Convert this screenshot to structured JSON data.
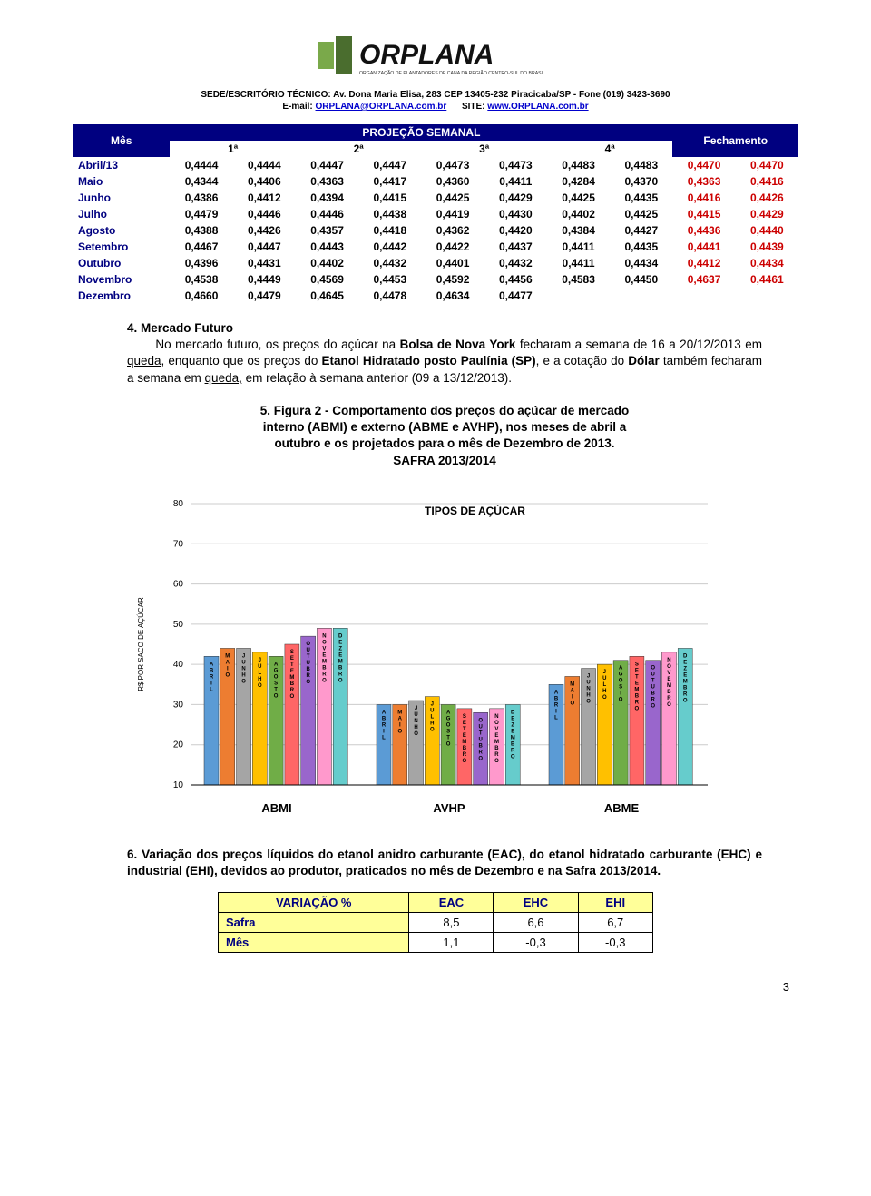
{
  "header": {
    "sede": "SEDE/ESCRITÓRIO TÉCNICO: Av. Dona Maria Elisa, 283 CEP 13405-232 Piracicaba/SP - Fone (019) 3423-3690",
    "email_label": "E-mail: ",
    "email": "ORPLANA@ORPLANA.com.br",
    "site_label": "SITE: ",
    "site": "www.ORPLANA.com.br",
    "logo_text": "ORPLANA",
    "logo_sub": "ORGANIZAÇÃO DE PLANTADORES DE CANA DA REGIÃO CENTRO-SUL DO BRASIL"
  },
  "proj_table": {
    "caption_mes": "Mês",
    "caption_proj": "PROJEÇÃO SEMANAL",
    "caption_fech": "Fechamento",
    "weeks": [
      "1ª",
      "2ª",
      "3ª",
      "4ª"
    ],
    "rows": [
      {
        "m": "Abril/13",
        "v": [
          "0,4444",
          "0,4444",
          "0,4447",
          "0,4447",
          "0,4473",
          "0,4473",
          "0,4483",
          "0,4483"
        ],
        "f": [
          "0,4470",
          "0,4470"
        ]
      },
      {
        "m": "Maio",
        "v": [
          "0,4344",
          "0,4406",
          "0,4363",
          "0,4417",
          "0,4360",
          "0,4411",
          "0,4284",
          "0,4370"
        ],
        "f": [
          "0,4363",
          "0,4416"
        ]
      },
      {
        "m": "Junho",
        "v": [
          "0,4386",
          "0,4412",
          "0,4394",
          "0,4415",
          "0,4425",
          "0,4429",
          "0,4425",
          "0,4435"
        ],
        "f": [
          "0,4416",
          "0,4426"
        ]
      },
      {
        "m": "Julho",
        "v": [
          "0,4479",
          "0,4446",
          "0,4446",
          "0,4438",
          "0,4419",
          "0,4430",
          "0,4402",
          "0,4425"
        ],
        "f": [
          "0,4415",
          "0,4429"
        ]
      },
      {
        "m": "Agosto",
        "v": [
          "0,4388",
          "0,4426",
          "0,4357",
          "0,4418",
          "0,4362",
          "0,4420",
          "0,4384",
          "0,4427"
        ],
        "f": [
          "0,4436",
          "0,4440"
        ]
      },
      {
        "m": "Setembro",
        "v": [
          "0,4467",
          "0,4447",
          "0,4443",
          "0,4442",
          "0,4422",
          "0,4437",
          "0,4411",
          "0,4435"
        ],
        "f": [
          "0,4441",
          "0,4439"
        ]
      },
      {
        "m": "Outubro",
        "v": [
          "0,4396",
          "0,4431",
          "0,4402",
          "0,4432",
          "0,4401",
          "0,4432",
          "0,4411",
          "0,4434"
        ],
        "f": [
          "0,4412",
          "0,4434"
        ]
      },
      {
        "m": "Novembro",
        "v": [
          "0,4538",
          "0,4449",
          "0,4569",
          "0,4453",
          "0,4592",
          "0,4456",
          "0,4583",
          "0,4450"
        ],
        "f": [
          "0,4637",
          "0,4461"
        ]
      },
      {
        "m": "Dezembro",
        "v": [
          "0,4660",
          "0,4479",
          "0,4645",
          "0,4478",
          "0,4634",
          "0,4477",
          "",
          ""
        ],
        "f": [
          "",
          ""
        ]
      }
    ]
  },
  "sec4": {
    "title": "4. Mercado Futuro",
    "body_pre": "No mercado futuro, os preços do açúcar na ",
    "bolsa": "Bolsa de Nova York",
    "body_mid1": " fecharam a semana de 16 a 20/12/2013 em ",
    "queda1": "queda",
    "body_mid2": ", enquanto que os preços do ",
    "etanol": "Etanol Hidratado posto Paulínia (SP)",
    "body_mid3": ", e a cotação do ",
    "dolar": "Dólar",
    "body_mid4": " também fecharam a semana em ",
    "queda2": "queda,",
    "body_end": " em relação à semana anterior (09 a 13/12/2013)."
  },
  "sec5": {
    "line1": "5. Figura 2 - Comportamento dos preços do açúcar de mercado",
    "line2": "interno (ABMI) e externo (ABME e AVHP), nos meses de abril a",
    "line3": "outubro e os projetados para o mês de Dezembro de 2013.",
    "line4": "SAFRA 2013/2014"
  },
  "chart": {
    "title": "TIPOS DE AÇÚCAR",
    "ylabel": "R$ POR SACO DE AÇÚCAR",
    "yticks": [
      10,
      20,
      30,
      40,
      50,
      60,
      70,
      80
    ],
    "ymin": 10,
    "ymax": 80,
    "groups": [
      "ABMI",
      "AVHP",
      "ABME"
    ],
    "months": [
      "ABRIL",
      "MAIO",
      "JUNHO",
      "JULHO",
      "AGOSTO",
      "SETEMBRO",
      "OUTUBRO",
      "NOVEMBRO",
      "DEZEMBRO"
    ],
    "colors": [
      "#5b9bd5",
      "#ed7d31",
      "#a5a5a5",
      "#ffc000",
      "#70ad47",
      "#ff6666",
      "#9966cc",
      "#ff99cc",
      "#66cccc"
    ],
    "values": {
      "ABMI": [
        42,
        44,
        44,
        43,
        42,
        45,
        47,
        49,
        49
      ],
      "AVHP": [
        30,
        30,
        31,
        32,
        30,
        29,
        28,
        29,
        30
      ],
      "ABME": [
        35,
        37,
        39,
        40,
        41,
        42,
        41,
        43,
        44
      ]
    },
    "font_size": 8,
    "bg": "#ffffff",
    "grid": "#cccccc"
  },
  "sec6": {
    "body": "6. Variação dos preços líquidos do etanol anidro carburante (EAC), do etanol hidratado carburante (EHC) e industrial (EHI), devidos ao produtor, praticados no mês de Dezembro e na Safra 2013/2014."
  },
  "var_table": {
    "headers": [
      "VARIAÇÃO %",
      "EAC",
      "EHC",
      "EHI"
    ],
    "rows": [
      {
        "lab": "Safra",
        "v": [
          "8,5",
          "6,6",
          "6,7"
        ]
      },
      {
        "lab": "Mês",
        "v": [
          "1,1",
          "-0,3",
          "-0,3"
        ]
      }
    ]
  },
  "page_number": "3"
}
